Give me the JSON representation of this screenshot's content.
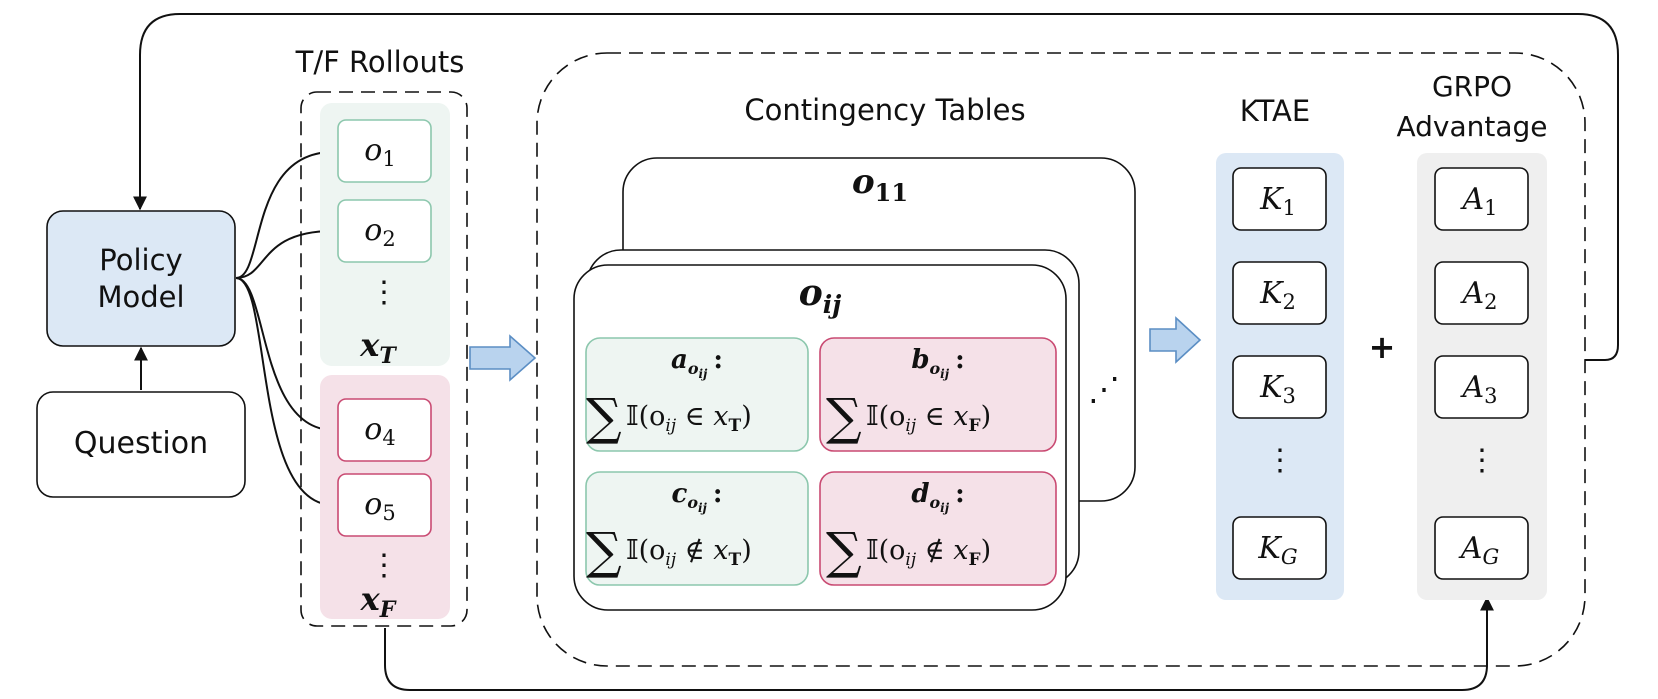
{
  "labels": {
    "policy_line1": "Policy",
    "policy_line2": "Model",
    "question": "Question",
    "rollouts_title": "T/F Rollouts",
    "contingency_title": "Contingency Tables",
    "ktae_title": "KTAE",
    "grpo_line1": "GRPO",
    "grpo_line2": "Advantage",
    "plus": "+"
  },
  "rollouts": {
    "true_items": [
      {
        "base": "o",
        "sub": "1"
      },
      {
        "base": "o",
        "sub": "2"
      }
    ],
    "true_set": {
      "base": "x",
      "sub": "T"
    },
    "false_items": [
      {
        "base": "o",
        "sub": "4"
      },
      {
        "base": "o",
        "sub": "5"
      }
    ],
    "false_set": {
      "base": "x",
      "sub": "F"
    },
    "ellipsis": "⋮"
  },
  "contingency": {
    "back_table": {
      "base": "o",
      "sub": "11"
    },
    "front_table": {
      "base": "o",
      "sub": "ij"
    },
    "diag_ellipsis": "⋰",
    "cells": [
      {
        "key": "a",
        "sub": "o",
        "subsub": "ij",
        "expr": "𝕀(o",
        "expr_sub": "ij",
        "rel": " ∈ x",
        "set": "T",
        "close": ")"
      },
      {
        "key": "b",
        "sub": "o",
        "subsub": "ij",
        "expr": "𝕀(o",
        "expr_sub": "ij",
        "rel": " ∈ x",
        "set": "F",
        "close": ")"
      },
      {
        "key": "c",
        "sub": "o",
        "subsub": "ij",
        "expr": "𝕀(o",
        "expr_sub": "ij",
        "rel": " ∉ x",
        "set": "T",
        "close": ")"
      },
      {
        "key": "d",
        "sub": "o",
        "subsub": "ij",
        "expr": "𝕀(o",
        "expr_sub": "ij",
        "rel": " ∉ x",
        "set": "F",
        "close": ")"
      }
    ],
    "colon": ":",
    "sum_symbol": "∑"
  },
  "ktae": {
    "items": [
      {
        "base": "K",
        "sub": "1"
      },
      {
        "base": "K",
        "sub": "2"
      },
      {
        "base": "K",
        "sub": "3"
      },
      {
        "base": "K",
        "sub": "G"
      }
    ],
    "ellipsis": "⋮"
  },
  "grpo": {
    "items": [
      {
        "base": "A",
        "sub": "1"
      },
      {
        "base": "A",
        "sub": "2"
      },
      {
        "base": "A",
        "sub": "3"
      },
      {
        "base": "A",
        "sub": "G"
      }
    ],
    "ellipsis": "⋮"
  },
  "colors": {
    "policy_fill": "#dce8f5",
    "true_fill": "#eef5f2",
    "true_stroke": "#8cc7ad",
    "false_fill": "#f5e1e8",
    "false_stroke": "#c94a72",
    "ktae_fill": "#dce8f5",
    "grpo_fill": "#efefef",
    "arrow_fill": "#b9d3ee",
    "arrow_stroke": "#5b8ec4"
  }
}
